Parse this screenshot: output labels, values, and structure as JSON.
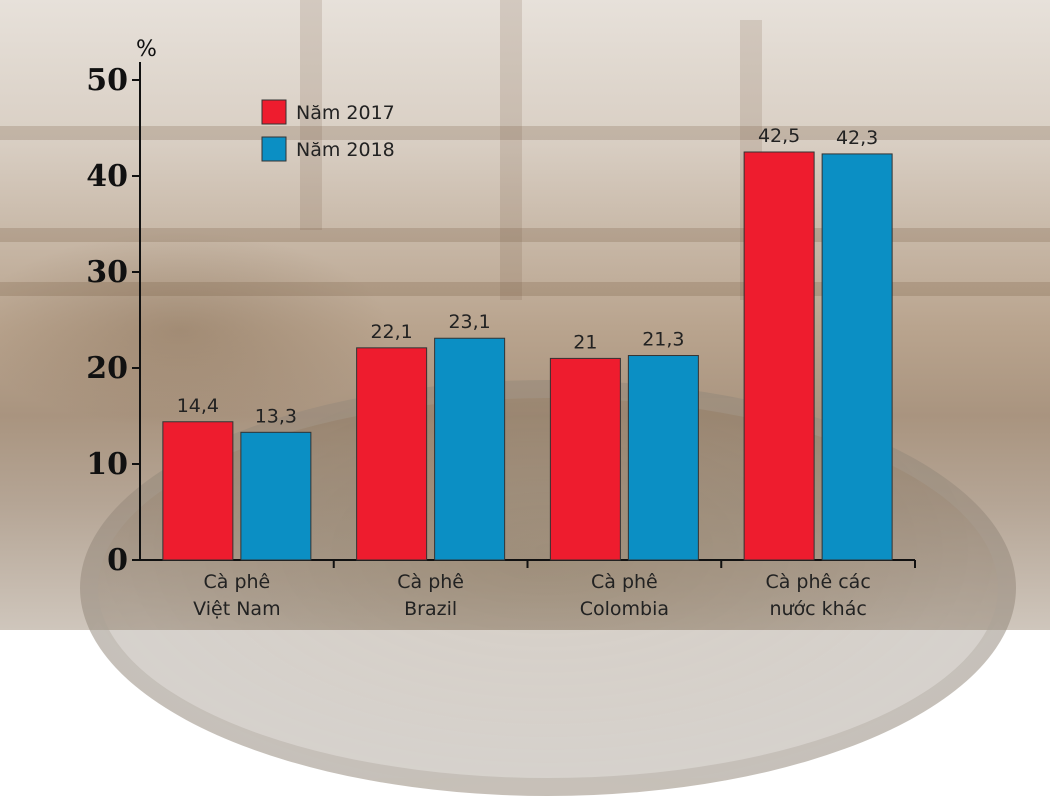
{
  "chart_data": {
    "type": "bar",
    "categories": [
      [
        "Cà phê",
        "Việt Nam"
      ],
      [
        "Cà phê",
        "Brazil"
      ],
      [
        "Cà phê",
        "Colombia"
      ],
      [
        "Cà phê các",
        "nước khác"
      ]
    ],
    "series": [
      {
        "name": "Năm 2017",
        "color": "#ee1c2e",
        "values": [
          14.4,
          22.1,
          21,
          42.5
        ],
        "labels": [
          "14,4",
          "22,1",
          "21",
          "42,5"
        ]
      },
      {
        "name": "Năm 2018",
        "color": "#0b8fc4",
        "values": [
          13.3,
          23.1,
          21.3,
          42.3
        ],
        "labels": [
          "13,3",
          "23,1",
          "21,3",
          "42,3"
        ]
      }
    ],
    "yunit": "%",
    "ylim": [
      0,
      50
    ],
    "yticks": [
      0,
      10,
      20,
      30,
      40,
      50
    ],
    "legend_position": "top-left",
    "grid": false
  }
}
